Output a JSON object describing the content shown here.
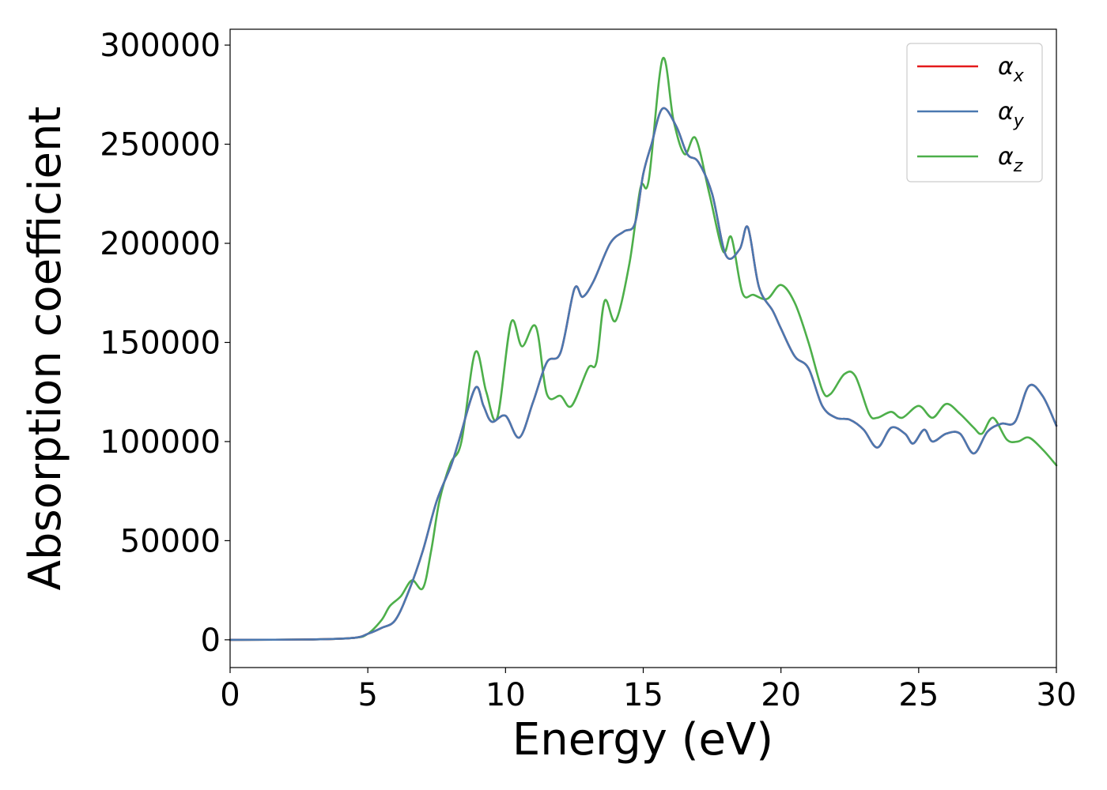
{
  "chart_data": {
    "type": "line",
    "title": "",
    "xlabel": "Energy (eV)",
    "ylabel": "Absorption coefficient",
    "xlim": [
      0,
      30
    ],
    "ylim": [
      -14000,
      308000
    ],
    "xticks": [
      0,
      5,
      10,
      15,
      20,
      25,
      30
    ],
    "yticks": [
      0,
      50000,
      100000,
      150000,
      200000,
      250000,
      300000
    ],
    "grid": false,
    "legend_position": "top-right",
    "series": [
      {
        "name": "α_x",
        "legend_main": "α",
        "legend_sub": "x",
        "color": "#e41a1c",
        "points": [
          [
            0,
            0
          ],
          [
            3,
            200
          ],
          [
            4.5,
            1000
          ],
          [
            5,
            3000
          ],
          [
            5.5,
            6000
          ],
          [
            6,
            10000
          ],
          [
            6.5,
            25000
          ],
          [
            7,
            45000
          ],
          [
            7.5,
            70000
          ],
          [
            8,
            87000
          ],
          [
            8.3,
            100000
          ],
          [
            8.9,
            127000
          ],
          [
            9.2,
            118000
          ],
          [
            9.5,
            110000
          ],
          [
            10,
            113000
          ],
          [
            10.5,
            102000
          ],
          [
            11,
            120000
          ],
          [
            11.5,
            140000
          ],
          [
            12,
            145000
          ],
          [
            12.5,
            177000
          ],
          [
            12.8,
            173000
          ],
          [
            13.2,
            181000
          ],
          [
            13.8,
            200000
          ],
          [
            14.3,
            206000
          ],
          [
            14.7,
            210000
          ],
          [
            15,
            235000
          ],
          [
            15.3,
            250000
          ],
          [
            15.7,
            268000
          ],
          [
            16.2,
            259000
          ],
          [
            16.6,
            245000
          ],
          [
            17,
            241000
          ],
          [
            17.5,
            225000
          ],
          [
            18,
            194000
          ],
          [
            18.5,
            197000
          ],
          [
            18.8,
            208000
          ],
          [
            19.2,
            178000
          ],
          [
            19.7,
            166000
          ],
          [
            20,
            157000
          ],
          [
            20.5,
            143000
          ],
          [
            21,
            137000
          ],
          [
            21.5,
            118000
          ],
          [
            22,
            112000
          ],
          [
            22.5,
            111000
          ],
          [
            23,
            106000
          ],
          [
            23.5,
            97000
          ],
          [
            24,
            107000
          ],
          [
            24.5,
            104000
          ],
          [
            24.8,
            99000
          ],
          [
            25.2,
            106000
          ],
          [
            25.5,
            100000
          ],
          [
            26,
            104000
          ],
          [
            26.5,
            104000
          ],
          [
            27,
            94000
          ],
          [
            27.5,
            105000
          ],
          [
            28,
            109000
          ],
          [
            28.5,
            110000
          ],
          [
            29,
            128000
          ],
          [
            29.5,
            123000
          ],
          [
            30,
            108000
          ]
        ]
      },
      {
        "name": "α_y",
        "legend_main": "α",
        "legend_sub": "y",
        "color": "#4a78b0",
        "points": [
          [
            0,
            0
          ],
          [
            3,
            200
          ],
          [
            4.5,
            1000
          ],
          [
            5,
            3000
          ],
          [
            5.5,
            6000
          ],
          [
            6,
            10000
          ],
          [
            6.5,
            25000
          ],
          [
            7,
            45000
          ],
          [
            7.5,
            70000
          ],
          [
            8,
            87000
          ],
          [
            8.3,
            100000
          ],
          [
            8.9,
            127000
          ],
          [
            9.2,
            118000
          ],
          [
            9.5,
            110000
          ],
          [
            10,
            113000
          ],
          [
            10.5,
            102000
          ],
          [
            11,
            120000
          ],
          [
            11.5,
            140000
          ],
          [
            12,
            145000
          ],
          [
            12.5,
            177000
          ],
          [
            12.8,
            173000
          ],
          [
            13.2,
            181000
          ],
          [
            13.8,
            200000
          ],
          [
            14.3,
            206000
          ],
          [
            14.7,
            210000
          ],
          [
            15,
            235000
          ],
          [
            15.3,
            250000
          ],
          [
            15.7,
            268000
          ],
          [
            16.2,
            259000
          ],
          [
            16.6,
            245000
          ],
          [
            17,
            241000
          ],
          [
            17.5,
            225000
          ],
          [
            18,
            194000
          ],
          [
            18.5,
            197000
          ],
          [
            18.8,
            208000
          ],
          [
            19.2,
            178000
          ],
          [
            19.7,
            166000
          ],
          [
            20,
            157000
          ],
          [
            20.5,
            143000
          ],
          [
            21,
            137000
          ],
          [
            21.5,
            118000
          ],
          [
            22,
            112000
          ],
          [
            22.5,
            111000
          ],
          [
            23,
            106000
          ],
          [
            23.5,
            97000
          ],
          [
            24,
            107000
          ],
          [
            24.5,
            104000
          ],
          [
            24.8,
            99000
          ],
          [
            25.2,
            106000
          ],
          [
            25.5,
            100000
          ],
          [
            26,
            104000
          ],
          [
            26.5,
            104000
          ],
          [
            27,
            94000
          ],
          [
            27.5,
            105000
          ],
          [
            28,
            109000
          ],
          [
            28.5,
            110000
          ],
          [
            29,
            128000
          ],
          [
            29.5,
            123000
          ],
          [
            30,
            108000
          ]
        ]
      },
      {
        "name": "α_z",
        "legend_main": "α",
        "legend_sub": "z",
        "color": "#4daf4a",
        "points": [
          [
            0,
            0
          ],
          [
            3,
            200
          ],
          [
            4.5,
            1000
          ],
          [
            5,
            3000
          ],
          [
            5.5,
            10000
          ],
          [
            5.8,
            17000
          ],
          [
            6.2,
            22000
          ],
          [
            6.6,
            30000
          ],
          [
            7,
            26000
          ],
          [
            7.3,
            45000
          ],
          [
            7.6,
            70000
          ],
          [
            8,
            89000
          ],
          [
            8.4,
            100000
          ],
          [
            8.9,
            145000
          ],
          [
            9.3,
            125000
          ],
          [
            9.7,
            112000
          ],
          [
            10.2,
            160000
          ],
          [
            10.6,
            148000
          ],
          [
            11.1,
            158000
          ],
          [
            11.5,
            124000
          ],
          [
            12,
            123000
          ],
          [
            12.4,
            118000
          ],
          [
            13,
            137000
          ],
          [
            13.3,
            140000
          ],
          [
            13.6,
            171000
          ],
          [
            14,
            161000
          ],
          [
            14.5,
            190000
          ],
          [
            14.9,
            228000
          ],
          [
            15.2,
            232000
          ],
          [
            15.7,
            293000
          ],
          [
            16.1,
            262000
          ],
          [
            16.5,
            245000
          ],
          [
            16.9,
            253000
          ],
          [
            17.4,
            225000
          ],
          [
            17.9,
            196000
          ],
          [
            18.2,
            203000
          ],
          [
            18.6,
            175000
          ],
          [
            19,
            174000
          ],
          [
            19.5,
            172000
          ],
          [
            20,
            179000
          ],
          [
            20.5,
            170000
          ],
          [
            21,
            150000
          ],
          [
            21.5,
            126000
          ],
          [
            21.8,
            124000
          ],
          [
            22.3,
            134000
          ],
          [
            22.7,
            133000
          ],
          [
            23.2,
            114000
          ],
          [
            23.5,
            112000
          ],
          [
            24,
            115000
          ],
          [
            24.4,
            112000
          ],
          [
            25,
            118000
          ],
          [
            25.5,
            112000
          ],
          [
            26,
            119000
          ],
          [
            26.5,
            114000
          ],
          [
            27,
            107000
          ],
          [
            27.3,
            104000
          ],
          [
            27.7,
            112000
          ],
          [
            28.2,
            101000
          ],
          [
            28.6,
            100000
          ],
          [
            29,
            102000
          ],
          [
            29.5,
            96000
          ],
          [
            30,
            88000
          ]
        ]
      }
    ]
  }
}
